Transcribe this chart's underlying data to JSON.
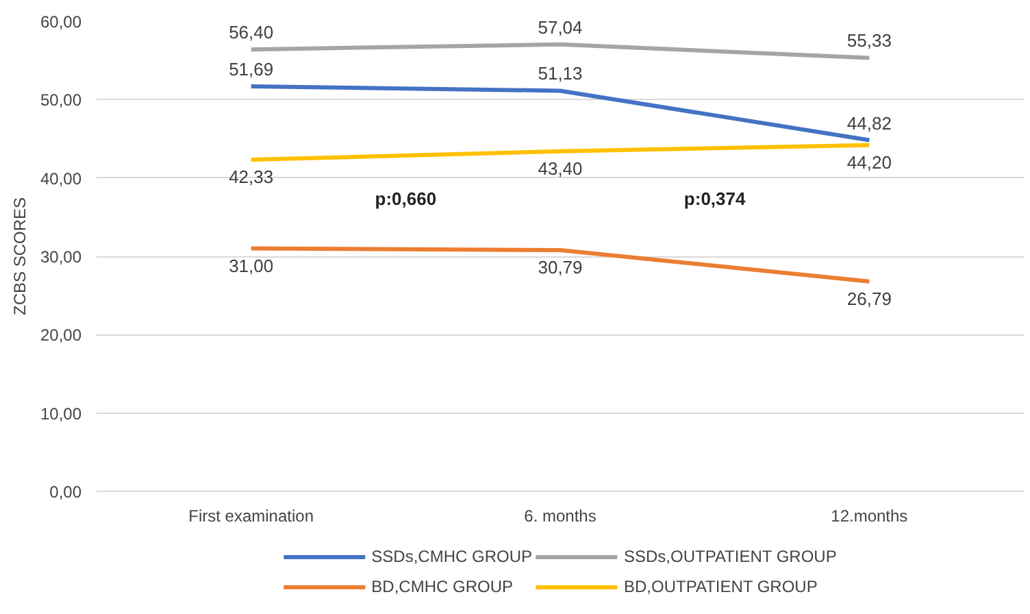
{
  "chart_data": {
    "type": "line",
    "ylabel": "ZCBS SCORES",
    "categories": [
      "First examination",
      "6. months",
      "12.months"
    ],
    "series": [
      {
        "name": "SSDs,CMHC GROUP",
        "color": "#4472c4",
        "values": [
          51.69,
          51.13,
          44.82
        ],
        "value_labels": [
          "51,69",
          "51,13",
          "44,82"
        ]
      },
      {
        "name": "BD,CMHC GROUP",
        "color": "#ed7d31",
        "values": [
          31.0,
          30.79,
          26.79
        ],
        "value_labels": [
          "31,00",
          "30,79",
          "26,79"
        ]
      },
      {
        "name": "SSDs,OUTPATIENT GROUP",
        "color": "#a5a5a5",
        "values": [
          56.4,
          57.04,
          55.33
        ],
        "value_labels": [
          "56,40",
          "57,04",
          "55,33"
        ]
      },
      {
        "name": "BD,OUTPATIENT GROUP",
        "color": "#ffc000",
        "values": [
          42.33,
          43.4,
          44.2
        ],
        "value_labels": [
          "42,33",
          "43,40",
          "44,20"
        ]
      }
    ],
    "annotations": [
      "p:0,660",
      "p:0,374"
    ],
    "ylim": [
      0,
      60
    ],
    "yticks": [
      {
        "value": 0,
        "label": "0,00"
      },
      {
        "value": 10,
        "label": "10,00"
      },
      {
        "value": 20,
        "label": "20,00"
      },
      {
        "value": 30,
        "label": "30,00"
      },
      {
        "value": 40,
        "label": "40,00"
      },
      {
        "value": 50,
        "label": "50,00"
      },
      {
        "value": 60,
        "label": "60,00"
      }
    ],
    "grid": "y",
    "legend": "bottom",
    "marker": "none",
    "line_style": "solid"
  }
}
